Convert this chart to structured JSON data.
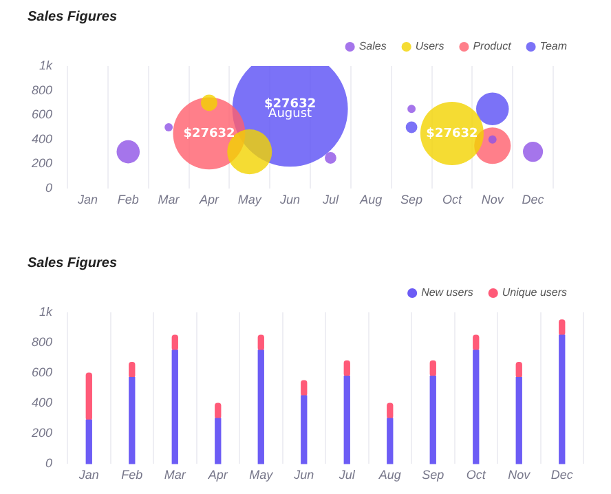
{
  "chart_data": [
    {
      "type": "bubble",
      "title": "Sales Figures",
      "legend": "top right",
      "grid": "x",
      "categories": [
        "Jan",
        "Feb",
        "Mar",
        "Apr",
        "May",
        "Jun",
        "Jul",
        "Aug",
        "Sep",
        "Oct",
        "Nov",
        "Dec"
      ],
      "ylim": [
        0,
        1000
      ],
      "yticks": [
        0,
        200,
        400,
        600,
        800,
        {
          "value": 1000,
          "label": "1k"
        }
      ],
      "series": [
        {
          "name": "Sales",
          "color": "#8e52e6",
          "x": [
            "Feb",
            "Mar",
            "Jul",
            "Sep",
            "Nov",
            "Dec"
          ],
          "values": [
            300,
            500,
            250,
            650,
            400,
            300
          ],
          "sizes": [
            0.04,
            0.005,
            0.01,
            0.005,
            0.005,
            0.03
          ]
        },
        {
          "name": "Users",
          "color": "#f2d300",
          "x": [
            "Apr",
            "May",
            "Oct"
          ],
          "values": [
            700,
            300,
            450
          ],
          "sizes": [
            0.02,
            0.15,
            0.3
          ]
        },
        {
          "name": "Product",
          "color": "#ff5f6d",
          "x": [
            "Apr",
            "Nov"
          ],
          "values": [
            450,
            350
          ],
          "sizes": [
            0.39,
            0.1
          ]
        },
        {
          "name": "Team",
          "color": "#5a4ff5",
          "x": [
            "Jun",
            "Sep",
            "Nov"
          ],
          "values": [
            650,
            500,
            650
          ],
          "sizes": [
            1,
            0.01,
            0.08
          ]
        }
      ],
      "annotations": [
        {
          "text": "$27632",
          "x": "Apr",
          "y": 450
        },
        {
          "text": "$27632",
          "x": "Jun",
          "y": 690
        },
        {
          "text": "August",
          "x": "Jun",
          "y": 610
        },
        {
          "text": "$27632",
          "x": "Oct",
          "y": 450
        }
      ]
    },
    {
      "type": "bar",
      "title": "Sales Figures",
      "legend": "top right",
      "grid": "x",
      "stacked": true,
      "categories": [
        "Jan",
        "Feb",
        "Mar",
        "Apr",
        "May",
        "Jun",
        "Jul",
        "Aug",
        "Sep",
        "Oct",
        "Nov",
        "Dec"
      ],
      "ylim": [
        0,
        1000
      ],
      "yticks": [
        0,
        200,
        400,
        600,
        800,
        {
          "value": 1000,
          "label": "1k"
        }
      ],
      "series": [
        {
          "name": "New users",
          "color": "#6c5cf5",
          "values": [
            290,
            570,
            750,
            300,
            750,
            450,
            580,
            300,
            580,
            750,
            570,
            850
          ]
        },
        {
          "name": "Unique users",
          "color": "#ff5a78",
          "values": [
            310,
            100,
            100,
            100,
            100,
            100,
            100,
            100,
            100,
            100,
            100,
            100
          ]
        }
      ]
    }
  ]
}
